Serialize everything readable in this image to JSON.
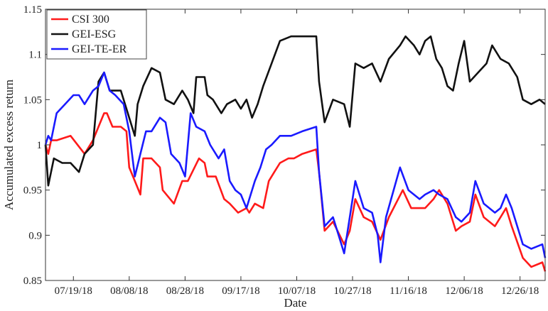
{
  "chart_data": {
    "type": "line",
    "xlabel": "Date",
    "ylabel": "Accumulated excess return",
    "ylim": [
      0.85,
      1.15
    ],
    "xlim": [
      "2018-07-09",
      "2019-01-04"
    ],
    "yticks": [
      0.85,
      0.9,
      0.95,
      1,
      1.05,
      1.1,
      1.15
    ],
    "ytick_labels": [
      "0.85",
      "0.9",
      "0.95",
      "1",
      "1.05",
      "1.1",
      "1.15"
    ],
    "xticks": [
      "2018-07-19",
      "2018-08-08",
      "2018-08-28",
      "2018-09-17",
      "2018-10-07",
      "2018-10-27",
      "2018-11-16",
      "2018-12-06",
      "2018-12-26"
    ],
    "xtick_labels": [
      "07/19/18",
      "08/08/18",
      "08/28/18",
      "09/17/18",
      "10/07/18",
      "10/27/18",
      "11/16/18",
      "12/06/18",
      "12/26/18"
    ],
    "grid": false,
    "legend_position": "top-left",
    "series": [
      {
        "name": "CSI 300",
        "color": "#ff1a1a",
        "points": [
          [
            "2018-07-09",
            1.0
          ],
          [
            "2018-07-10",
            0.99
          ],
          [
            "2018-07-11",
            1.005
          ],
          [
            "2018-07-13",
            1.005
          ],
          [
            "2018-07-18",
            1.01
          ],
          [
            "2018-07-23",
            0.99
          ],
          [
            "2018-07-26",
            1.005
          ],
          [
            "2018-07-28",
            1.02
          ],
          [
            "2018-07-30",
            1.035
          ],
          [
            "2018-07-31",
            1.035
          ],
          [
            "2018-08-02",
            1.02
          ],
          [
            "2018-08-05",
            1.02
          ],
          [
            "2018-08-07",
            1.015
          ],
          [
            "2018-08-08",
            0.975
          ],
          [
            "2018-08-10",
            0.96
          ],
          [
            "2018-08-12",
            0.945
          ],
          [
            "2018-08-13",
            0.985
          ],
          [
            "2018-08-16",
            0.985
          ],
          [
            "2018-08-19",
            0.975
          ],
          [
            "2018-08-20",
            0.95
          ],
          [
            "2018-08-24",
            0.935
          ],
          [
            "2018-08-27",
            0.96
          ],
          [
            "2018-08-29",
            0.96
          ],
          [
            "2018-09-02",
            0.985
          ],
          [
            "2018-09-04",
            0.98
          ],
          [
            "2018-09-05",
            0.965
          ],
          [
            "2018-09-08",
            0.965
          ],
          [
            "2018-09-11",
            0.94
          ],
          [
            "2018-09-13",
            0.935
          ],
          [
            "2018-09-16",
            0.925
          ],
          [
            "2018-09-19",
            0.93
          ],
          [
            "2018-09-20",
            0.925
          ],
          [
            "2018-09-22",
            0.935
          ],
          [
            "2018-09-25",
            0.93
          ],
          [
            "2018-09-27",
            0.96
          ],
          [
            "2018-09-29",
            0.97
          ],
          [
            "2018-10-01",
            0.98
          ],
          [
            "2018-10-04",
            0.985
          ],
          [
            "2018-10-06",
            0.985
          ],
          [
            "2018-10-09",
            0.99
          ],
          [
            "2018-10-14",
            0.995
          ],
          [
            "2018-10-15",
            0.97
          ],
          [
            "2018-10-17",
            0.905
          ],
          [
            "2018-10-20",
            0.915
          ],
          [
            "2018-10-24",
            0.89
          ],
          [
            "2018-10-26",
            0.905
          ],
          [
            "2018-10-28",
            0.94
          ],
          [
            "2018-10-31",
            0.92
          ],
          [
            "2018-11-03",
            0.915
          ],
          [
            "2018-11-06",
            0.895
          ],
          [
            "2018-11-09",
            0.92
          ],
          [
            "2018-11-14",
            0.95
          ],
          [
            "2018-11-17",
            0.93
          ],
          [
            "2018-11-22",
            0.93
          ],
          [
            "2018-11-25",
            0.94
          ],
          [
            "2018-11-27",
            0.95
          ],
          [
            "2018-11-30",
            0.935
          ],
          [
            "2018-12-03",
            0.905
          ],
          [
            "2018-12-05",
            0.91
          ],
          [
            "2018-12-08",
            0.915
          ],
          [
            "2018-12-10",
            0.945
          ],
          [
            "2018-12-13",
            0.92
          ],
          [
            "2018-12-17",
            0.91
          ],
          [
            "2018-12-19",
            0.92
          ],
          [
            "2018-12-21",
            0.93
          ],
          [
            "2018-12-23",
            0.91
          ],
          [
            "2018-12-27",
            0.875
          ],
          [
            "2018-12-30",
            0.865
          ],
          [
            "2019-01-03",
            0.87
          ],
          [
            "2019-01-04",
            0.86
          ]
        ]
      },
      {
        "name": "GEI-ESG",
        "color": "#111111",
        "points": [
          [
            "2018-07-09",
            1.0
          ],
          [
            "2018-07-10",
            0.955
          ],
          [
            "2018-07-12",
            0.985
          ],
          [
            "2018-07-15",
            0.98
          ],
          [
            "2018-07-18",
            0.98
          ],
          [
            "2018-07-21",
            0.97
          ],
          [
            "2018-07-23",
            0.99
          ],
          [
            "2018-07-26",
            1.0
          ],
          [
            "2018-07-28",
            1.07
          ],
          [
            "2018-07-30",
            1.08
          ],
          [
            "2018-08-01",
            1.06
          ],
          [
            "2018-08-03",
            1.06
          ],
          [
            "2018-08-05",
            1.06
          ],
          [
            "2018-08-07",
            1.04
          ],
          [
            "2018-08-09",
            1.02
          ],
          [
            "2018-08-10",
            1.01
          ],
          [
            "2018-08-11",
            1.045
          ],
          [
            "2018-08-13",
            1.065
          ],
          [
            "2018-08-16",
            1.085
          ],
          [
            "2018-08-19",
            1.08
          ],
          [
            "2018-08-21",
            1.05
          ],
          [
            "2018-08-24",
            1.045
          ],
          [
            "2018-08-27",
            1.06
          ],
          [
            "2018-08-29",
            1.05
          ],
          [
            "2018-08-31",
            1.035
          ],
          [
            "2018-09-01",
            1.075
          ],
          [
            "2018-09-04",
            1.075
          ],
          [
            "2018-09-05",
            1.055
          ],
          [
            "2018-09-07",
            1.05
          ],
          [
            "2018-09-10",
            1.035
          ],
          [
            "2018-09-12",
            1.045
          ],
          [
            "2018-09-15",
            1.05
          ],
          [
            "2018-09-17",
            1.04
          ],
          [
            "2018-09-19",
            1.05
          ],
          [
            "2018-09-21",
            1.03
          ],
          [
            "2018-09-23",
            1.045
          ],
          [
            "2018-09-25",
            1.065
          ],
          [
            "2018-09-28",
            1.09
          ],
          [
            "2018-10-01",
            1.115
          ],
          [
            "2018-10-05",
            1.12
          ],
          [
            "2018-10-14",
            1.12
          ],
          [
            "2018-10-15",
            1.07
          ],
          [
            "2018-10-17",
            1.025
          ],
          [
            "2018-10-20",
            1.05
          ],
          [
            "2018-10-24",
            1.045
          ],
          [
            "2018-10-26",
            1.02
          ],
          [
            "2018-10-28",
            1.09
          ],
          [
            "2018-10-31",
            1.085
          ],
          [
            "2018-11-03",
            1.09
          ],
          [
            "2018-11-06",
            1.07
          ],
          [
            "2018-11-09",
            1.095
          ],
          [
            "2018-11-13",
            1.11
          ],
          [
            "2018-11-15",
            1.12
          ],
          [
            "2018-11-18",
            1.11
          ],
          [
            "2018-11-20",
            1.1
          ],
          [
            "2018-11-22",
            1.115
          ],
          [
            "2018-11-24",
            1.12
          ],
          [
            "2018-11-26",
            1.095
          ],
          [
            "2018-11-28",
            1.085
          ],
          [
            "2018-11-30",
            1.065
          ],
          [
            "2018-12-02",
            1.06
          ],
          [
            "2018-12-04",
            1.09
          ],
          [
            "2018-12-06",
            1.115
          ],
          [
            "2018-12-08",
            1.07
          ],
          [
            "2018-12-11",
            1.08
          ],
          [
            "2018-12-14",
            1.09
          ],
          [
            "2018-12-16",
            1.11
          ],
          [
            "2018-12-19",
            1.095
          ],
          [
            "2018-12-22",
            1.09
          ],
          [
            "2018-12-25",
            1.075
          ],
          [
            "2018-12-27",
            1.05
          ],
          [
            "2018-12-30",
            1.045
          ],
          [
            "2019-01-02",
            1.05
          ],
          [
            "2019-01-04",
            1.045
          ]
        ]
      },
      {
        "name": "GEI-TE-ER",
        "color": "#1a1aff",
        "points": [
          [
            "2018-07-09",
            1.0
          ],
          [
            "2018-07-10",
            1.01
          ],
          [
            "2018-07-11",
            1.005
          ],
          [
            "2018-07-13",
            1.035
          ],
          [
            "2018-07-16",
            1.045
          ],
          [
            "2018-07-19",
            1.055
          ],
          [
            "2018-07-21",
            1.055
          ],
          [
            "2018-07-23",
            1.045
          ],
          [
            "2018-07-26",
            1.06
          ],
          [
            "2018-07-28",
            1.065
          ],
          [
            "2018-07-30",
            1.08
          ],
          [
            "2018-08-01",
            1.06
          ],
          [
            "2018-08-03",
            1.055
          ],
          [
            "2018-08-06",
            1.045
          ],
          [
            "2018-08-08",
            1.015
          ],
          [
            "2018-08-10",
            0.965
          ],
          [
            "2018-08-12",
            0.99
          ],
          [
            "2018-08-14",
            1.015
          ],
          [
            "2018-08-16",
            1.015
          ],
          [
            "2018-08-19",
            1.03
          ],
          [
            "2018-08-21",
            1.025
          ],
          [
            "2018-08-23",
            0.99
          ],
          [
            "2018-08-26",
            0.98
          ],
          [
            "2018-08-28",
            0.965
          ],
          [
            "2018-08-30",
            1.035
          ],
          [
            "2018-09-01",
            1.02
          ],
          [
            "2018-09-04",
            1.015
          ],
          [
            "2018-09-06",
            1.0
          ],
          [
            "2018-09-09",
            0.985
          ],
          [
            "2018-09-11",
            0.995
          ],
          [
            "2018-09-13",
            0.96
          ],
          [
            "2018-09-15",
            0.95
          ],
          [
            "2018-09-17",
            0.945
          ],
          [
            "2018-09-19",
            0.93
          ],
          [
            "2018-09-22",
            0.96
          ],
          [
            "2018-09-24",
            0.975
          ],
          [
            "2018-09-26",
            0.995
          ],
          [
            "2018-09-28",
            1.0
          ],
          [
            "2018-10-01",
            1.01
          ],
          [
            "2018-10-05",
            1.01
          ],
          [
            "2018-10-09",
            1.015
          ],
          [
            "2018-10-14",
            1.02
          ],
          [
            "2018-10-15",
            0.97
          ],
          [
            "2018-10-17",
            0.91
          ],
          [
            "2018-10-20",
            0.92
          ],
          [
            "2018-10-22",
            0.9
          ],
          [
            "2018-10-24",
            0.88
          ],
          [
            "2018-10-26",
            0.92
          ],
          [
            "2018-10-28",
            0.96
          ],
          [
            "2018-10-31",
            0.93
          ],
          [
            "2018-11-03",
            0.925
          ],
          [
            "2018-11-05",
            0.9
          ],
          [
            "2018-11-06",
            0.87
          ],
          [
            "2018-11-08",
            0.92
          ],
          [
            "2018-11-13",
            0.975
          ],
          [
            "2018-11-16",
            0.95
          ],
          [
            "2018-11-20",
            0.94
          ],
          [
            "2018-11-22",
            0.945
          ],
          [
            "2018-11-25",
            0.95
          ],
          [
            "2018-11-27",
            0.945
          ],
          [
            "2018-11-30",
            0.94
          ],
          [
            "2018-12-03",
            0.92
          ],
          [
            "2018-12-05",
            0.915
          ],
          [
            "2018-12-08",
            0.925
          ],
          [
            "2018-12-10",
            0.96
          ],
          [
            "2018-12-13",
            0.935
          ],
          [
            "2018-12-17",
            0.925
          ],
          [
            "2018-12-19",
            0.93
          ],
          [
            "2018-12-21",
            0.945
          ],
          [
            "2018-12-23",
            0.93
          ],
          [
            "2018-12-27",
            0.89
          ],
          [
            "2018-12-30",
            0.885
          ],
          [
            "2019-01-03",
            0.89
          ],
          [
            "2019-01-04",
            0.875
          ]
        ]
      }
    ]
  }
}
